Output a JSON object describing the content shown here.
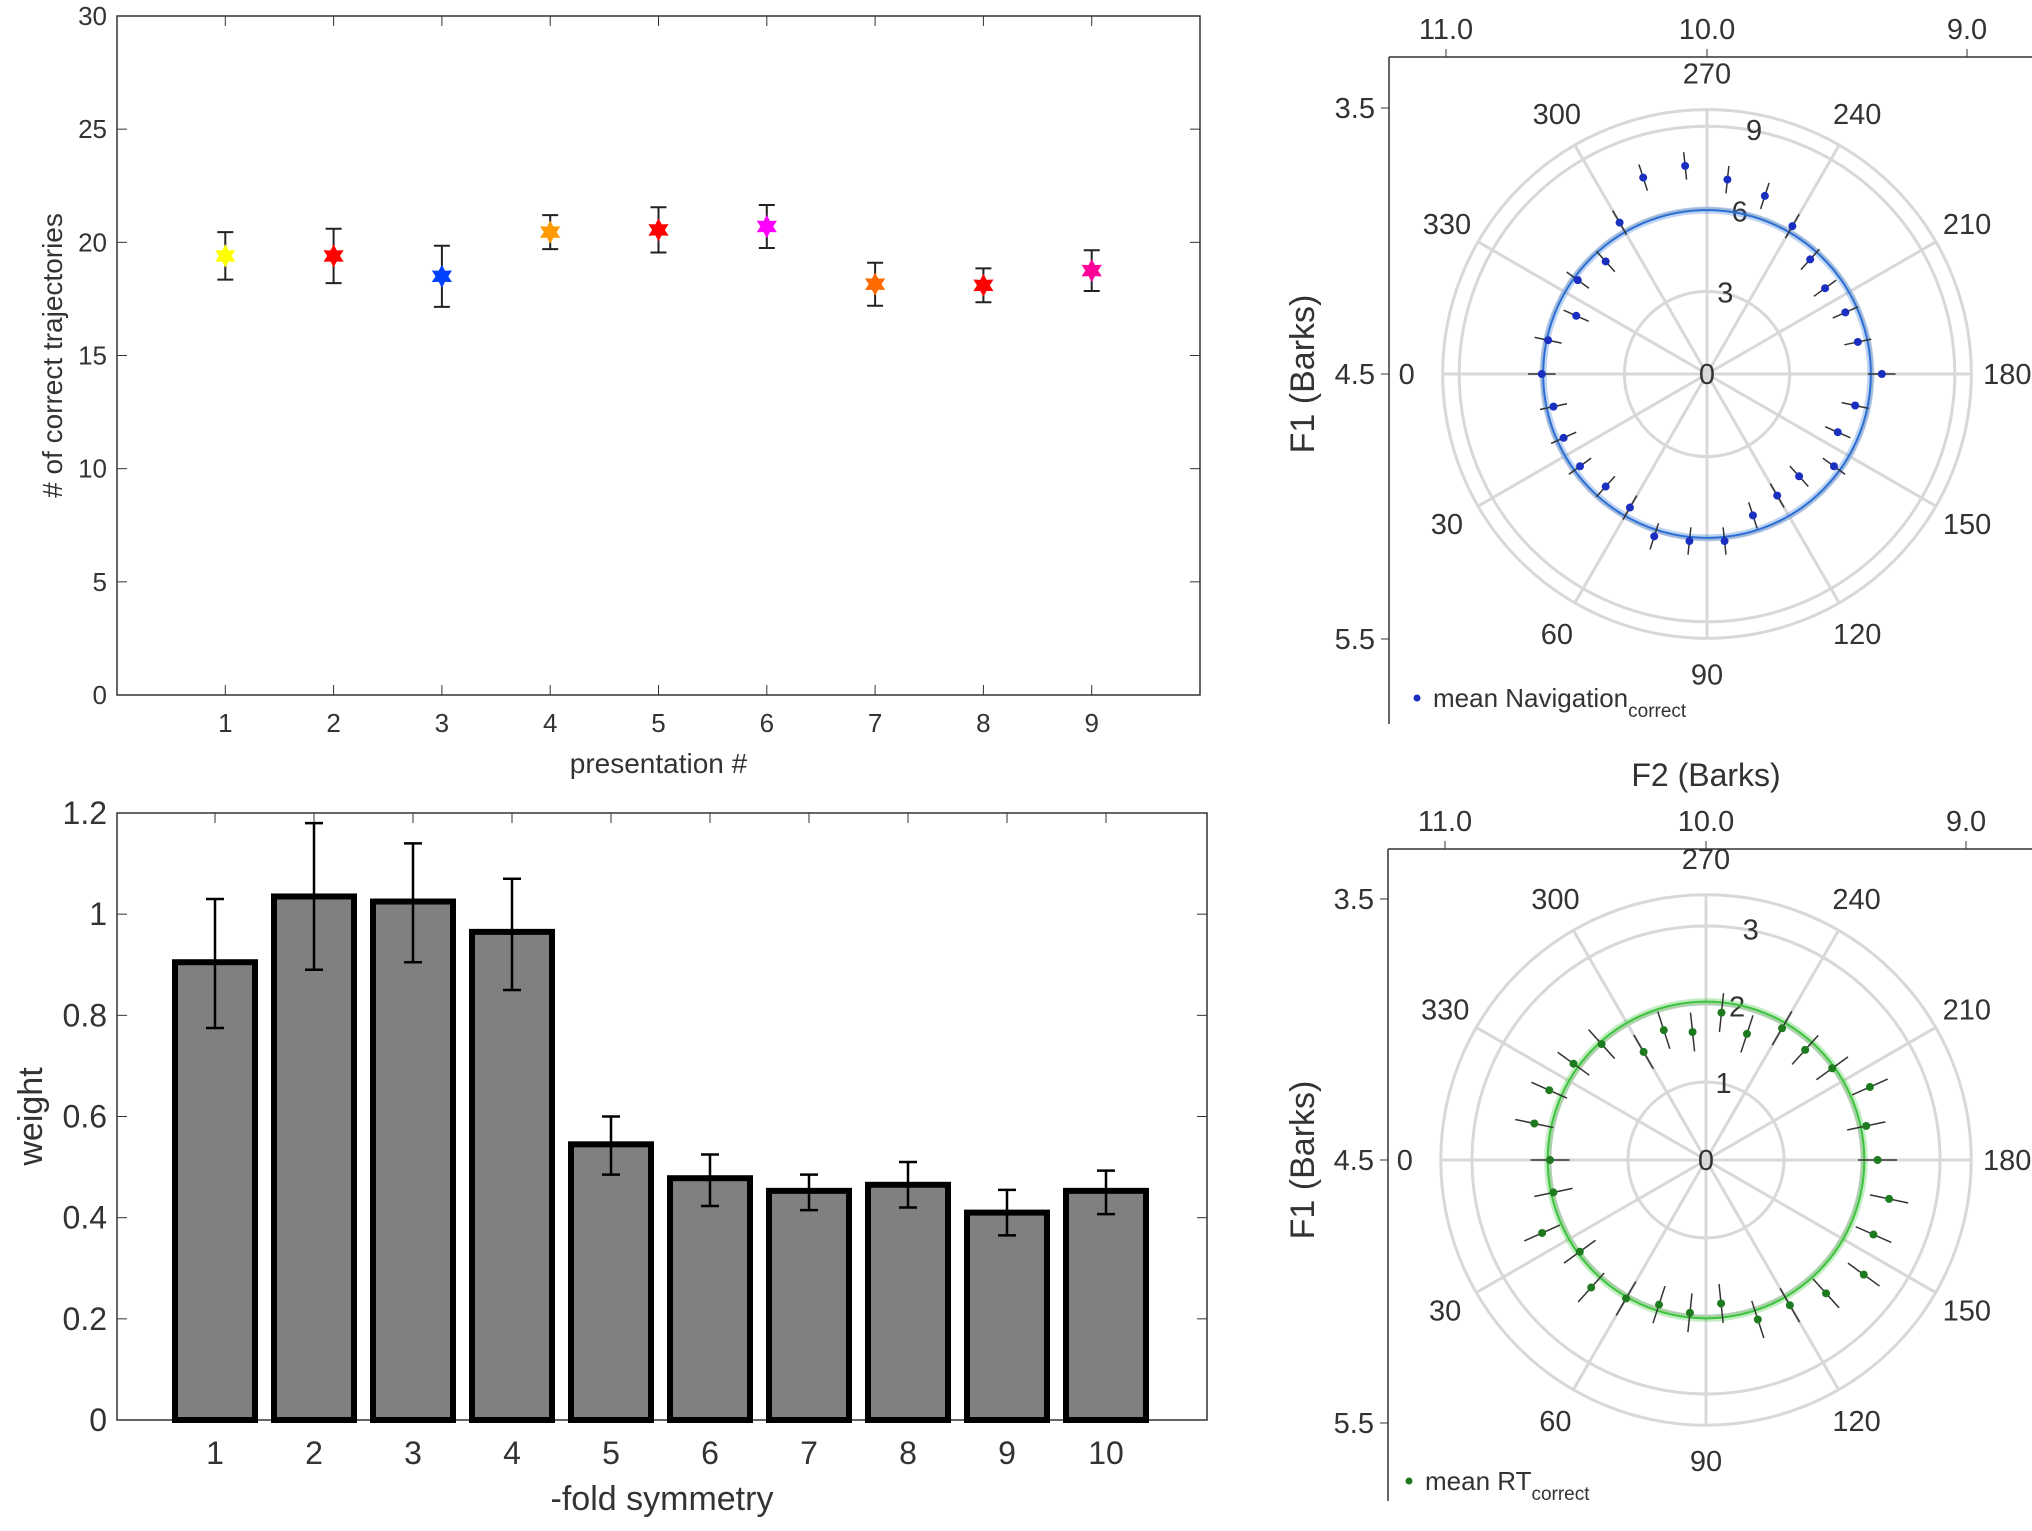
{
  "chart_data": [
    {
      "type": "scatter",
      "xlabel": "presentation #",
      "ylabel": "# of correct trajectories",
      "ylim": [
        0,
        30
      ],
      "yticks": [
        "0",
        "5",
        "10",
        "15",
        "20",
        "25",
        "30"
      ],
      "xticks": [
        "1",
        "2",
        "3",
        "4",
        "5",
        "6",
        "7",
        "8",
        "9"
      ],
      "x": [
        1,
        2,
        3,
        4,
        5,
        6,
        7,
        8,
        9
      ],
      "y": [
        19.4,
        19.4,
        18.5,
        20.45,
        20.55,
        20.7,
        18.15,
        18.1,
        18.75
      ],
      "err": [
        1.05,
        1.2,
        1.35,
        0.75,
        1.0,
        0.95,
        0.95,
        0.75,
        0.9
      ],
      "colors": [
        "#ffff00",
        "#ff0000",
        "#0040ff",
        "#ff9900",
        "#ff0000",
        "#ff00ff",
        "#ff6a00",
        "#ff0000",
        "#ff0099"
      ],
      "marker": "hexagram",
      "grid": false
    },
    {
      "type": "bar",
      "xlabel": "-fold symmetry",
      "ylabel": "weight",
      "ylim": [
        0,
        1.2
      ],
      "yticks": [
        "0",
        "0.2",
        "0.4",
        "0.6",
        "0.8",
        "1",
        "1.2"
      ],
      "categories": [
        "1",
        "2",
        "3",
        "4",
        "5",
        "6",
        "7",
        "8",
        "9",
        "10"
      ],
      "values": [
        0.905,
        1.035,
        1.025,
        0.965,
        0.545,
        0.478,
        0.453,
        0.465,
        0.41,
        0.453
      ],
      "err_low": [
        0.775,
        0.89,
        0.905,
        0.85,
        0.485,
        0.423,
        0.415,
        0.42,
        0.365,
        0.407
      ],
      "err_high": [
        1.03,
        1.18,
        1.14,
        1.07,
        0.6,
        0.525,
        0.485,
        0.51,
        0.455,
        0.493
      ],
      "bar_color": "#808080",
      "grid": false
    },
    {
      "type": "scatter",
      "subtype": "polar",
      "xlabel_top": "",
      "ylabel": "F1 (Barks)",
      "top_ticks": [
        "11.0",
        "10.0",
        "9.0"
      ],
      "left_ticks": [
        "3.5",
        "4.5",
        "5.5"
      ],
      "angle_labels": [
        "0",
        "30",
        "60",
        "90",
        "120",
        "150",
        "180",
        "210",
        "240",
        "270",
        "300",
        "330"
      ],
      "radial_ticks": [
        "0",
        "3",
        "6",
        "9"
      ],
      "rmax": 9.6,
      "angles": [
        0,
        12,
        24,
        36,
        48,
        60,
        72,
        84,
        96,
        108,
        120,
        132,
        144,
        156,
        168,
        180,
        192,
        204,
        216,
        228,
        240,
        252,
        264,
        276,
        288,
        300,
        312,
        324,
        336,
        348
      ],
      "r": [
        6.0,
        5.7,
        5.7,
        5.7,
        5.5,
        5.6,
        6.2,
        6.1,
        6.1,
        5.4,
        5.1,
        5.0,
        5.7,
        5.2,
        5.5,
        6.35,
        5.6,
        5.5,
        5.3,
        5.6,
        6.2,
        6.8,
        7.1,
        7.6,
        7.5,
        6.35,
        5.5,
        5.8,
        5.2,
        5.9
      ],
      "err": 0.5,
      "fit_radius": 5.95,
      "point_color": "#1a2fbf",
      "fit_color": "#2a6fd6",
      "legend": "mean Navigation",
      "legend_sub": "correct",
      "legend_position": "bottom-left"
    },
    {
      "type": "scatter",
      "subtype": "polar",
      "xlabel_top": "F2 (Barks)",
      "ylabel": "F1 (Barks)",
      "top_ticks": [
        "11.0",
        "10.0",
        "9.0"
      ],
      "left_ticks": [
        "3.5",
        "4.5",
        "5.5"
      ],
      "angle_labels": [
        "0",
        "30",
        "60",
        "90",
        "120",
        "150",
        "180",
        "210",
        "240",
        "270",
        "300",
        "330"
      ],
      "radial_ticks": [
        "0",
        "1",
        "2",
        "3"
      ],
      "rmax": 3.4,
      "angles": [
        0,
        12,
        24,
        36,
        48,
        60,
        72,
        84,
        96,
        108,
        120,
        132,
        144,
        156,
        168,
        180,
        192,
        204,
        216,
        228,
        240,
        252,
        264,
        276,
        288,
        300,
        312,
        324,
        336,
        348
      ],
      "r": [
        2.0,
        2.0,
        2.3,
        2.0,
        2.2,
        2.05,
        1.95,
        1.97,
        1.85,
        2.15,
        2.15,
        2.3,
        2.5,
        2.35,
        2.4,
        2.2,
        2.1,
        2.3,
        2.0,
        1.9,
        1.95,
        1.7,
        1.9,
        1.65,
        1.75,
        1.6,
        2.0,
        2.1,
        2.2,
        2.25
      ],
      "err": 0.25,
      "fit_radius": 2.03,
      "point_color": "#1e7a1e",
      "fit_color": "#3cc43c",
      "legend": "mean RT",
      "legend_sub": "correct",
      "legend_position": "bottom-left"
    }
  ]
}
